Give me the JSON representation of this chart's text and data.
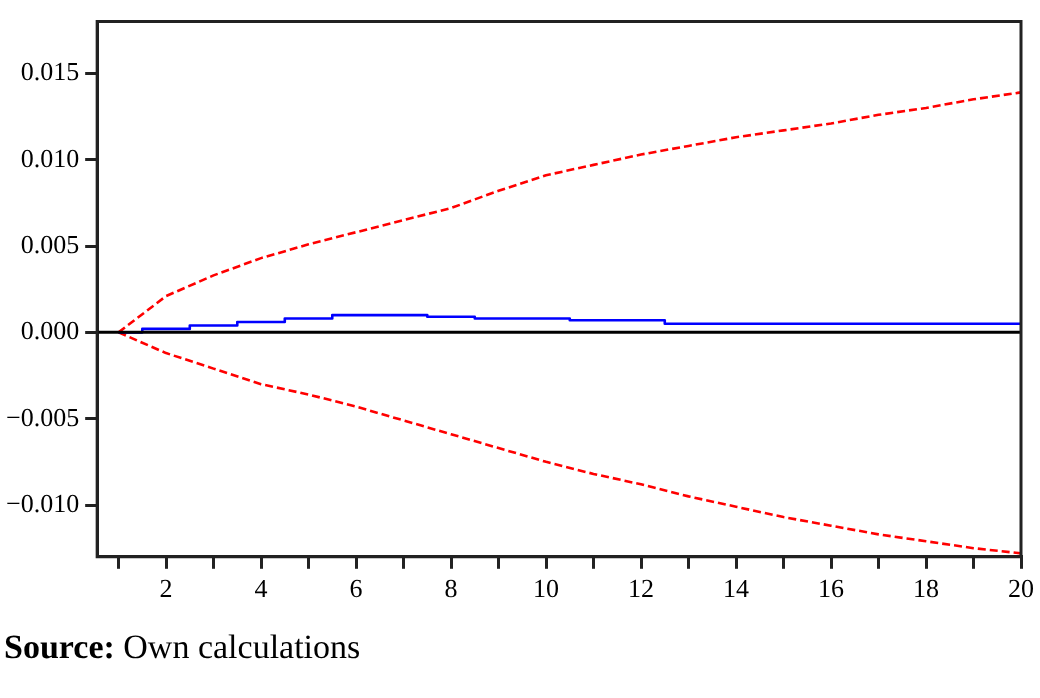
{
  "chart_data": {
    "type": "line",
    "x": [
      1,
      2,
      3,
      4,
      5,
      6,
      7,
      8,
      9,
      10,
      11,
      12,
      13,
      14,
      15,
      16,
      17,
      18,
      19,
      20
    ],
    "series": [
      {
        "type": "step",
        "color": "#0000ff",
        "line_style": "solid",
        "values": [
          0,
          0.0002,
          0.0004,
          0.0006,
          0.0008,
          0.001,
          0.001,
          0.0009,
          0.0008,
          0.0008,
          0.0007,
          0.0007,
          0.0005,
          0.0005,
          0.0005,
          0.0005,
          0.0005,
          0.0005,
          0.0005,
          0.0005
        ]
      },
      {
        "type": "line",
        "color": "#ff0000",
        "line_style": "dashed",
        "values": [
          0,
          0.0021,
          0.0033,
          0.0043,
          0.0051,
          0.0058,
          0.0065,
          0.0072,
          0.0082,
          0.0091,
          0.0097,
          0.0103,
          0.0108,
          0.0113,
          0.0117,
          0.0121,
          0.0126,
          0.013,
          0.0135,
          0.0139
        ]
      },
      {
        "type": "line",
        "color": "#ff0000",
        "line_style": "dashed",
        "values": [
          0,
          -0.0012,
          -0.0021,
          -0.003,
          -0.0036,
          -0.0043,
          -0.0051,
          -0.0059,
          -0.0067,
          -0.0075,
          -0.0082,
          -0.0088,
          -0.0095,
          -0.0101,
          -0.0107,
          -0.0112,
          -0.0117,
          -0.0121,
          -0.0125,
          -0.0128
        ]
      }
    ],
    "xlim": [
      0.55,
      20
    ],
    "xticks": [
      {
        "value": 1,
        "label": null
      },
      2,
      {
        "value": 3,
        "label": null
      },
      4,
      {
        "value": 5,
        "label": null
      },
      6,
      {
        "value": 7,
        "label": null
      },
      8,
      {
        "value": 9,
        "label": null
      },
      10,
      {
        "value": 11,
        "label": null
      },
      12,
      {
        "value": 13,
        "label": null
      },
      14,
      {
        "value": 15,
        "label": null
      },
      16,
      {
        "value": 17,
        "label": null
      },
      18,
      {
        "value": 19,
        "label": null
      },
      20
    ],
    "ylim": [
      -0.013,
      0.018
    ],
    "yticks": [
      {
        "value": -0.01,
        "label": "−0.010"
      },
      {
        "value": -0.005,
        "label": "−0.005"
      },
      {
        "value": 0,
        "label": "0.000"
      },
      {
        "value": 0.005,
        "label": "0.005"
      },
      {
        "value": 0.01,
        "label": "0.010"
      },
      {
        "value": 0.015,
        "label": "0.015"
      }
    ],
    "ref_lines": [
      {
        "axis": "y",
        "value": 0,
        "color": "#000000"
      }
    ],
    "grid": false,
    "legend": false,
    "marker": "none",
    "annotations": [
      "Source: Own calculations"
    ]
  }
}
